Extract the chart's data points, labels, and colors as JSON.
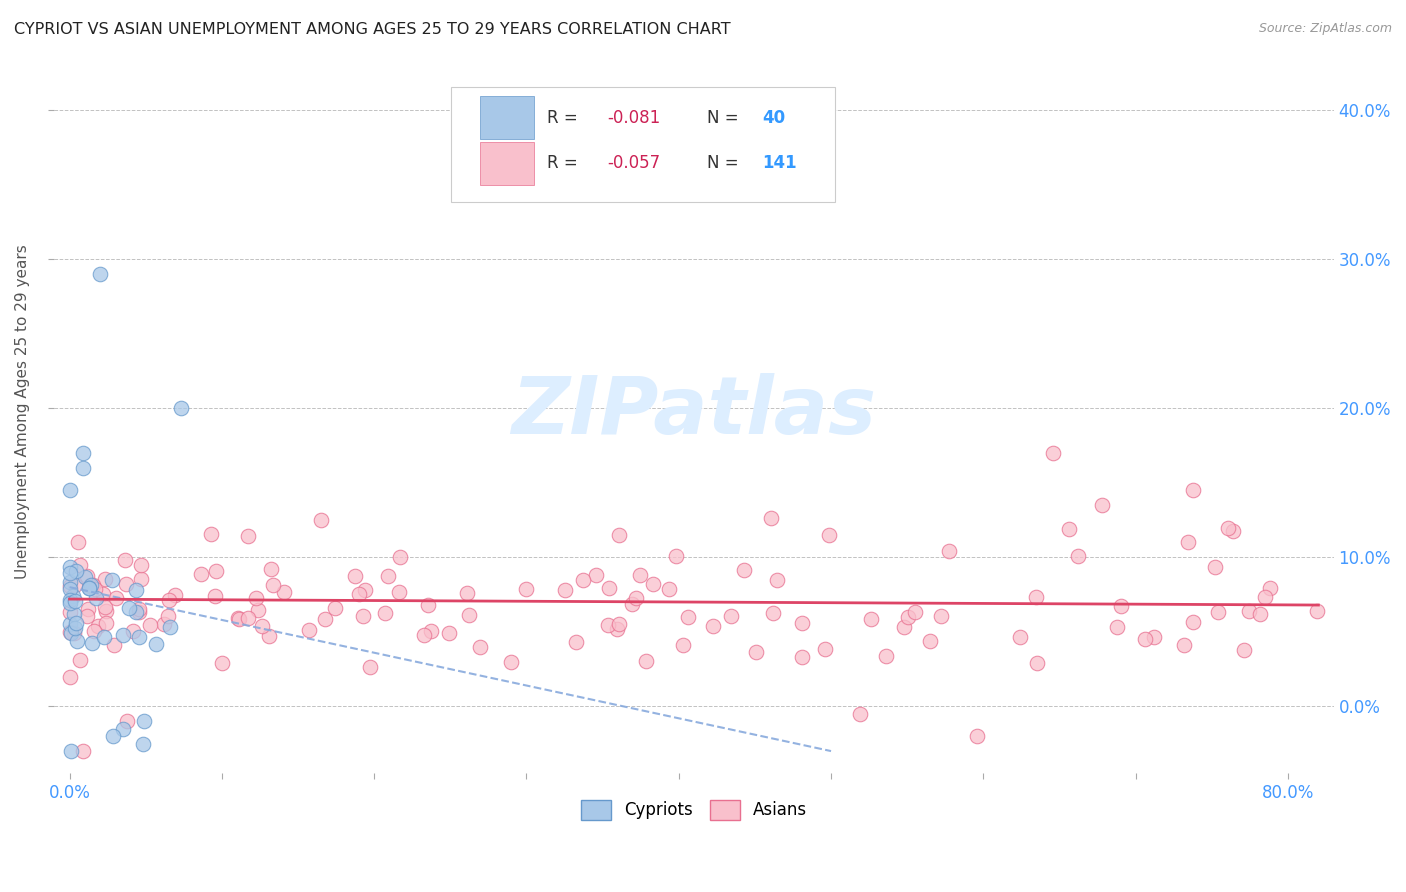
{
  "title": "CYPRIOT VS ASIAN UNEMPLOYMENT AMONG AGES 25 TO 29 YEARS CORRELATION CHART",
  "source": "Source: ZipAtlas.com",
  "ylabel": "Unemployment Among Ages 25 to 29 years",
  "xlim": [
    0.0,
    0.8
  ],
  "ylim": [
    -0.04,
    0.44
  ],
  "cypriot_R": -0.081,
  "cypriot_N": 40,
  "asian_R": -0.057,
  "asian_N": 141,
  "cypriot_color": "#a8c8e8",
  "cypriot_edge_color": "#6699cc",
  "asian_color": "#f9c0cc",
  "asian_edge_color": "#e87090",
  "trend_cypriot_color": "#88aadd",
  "trend_asian_color": "#dd4466",
  "background_color": "#ffffff",
  "grid_color": "#bbbbbb",
  "title_color": "#222222",
  "axis_label_color": "#4499ff",
  "watermark_color": "#ddeeff",
  "legend_text_color": "#333333",
  "legend_R_color": "#cc2255",
  "legend_N_color": "#3399ff"
}
